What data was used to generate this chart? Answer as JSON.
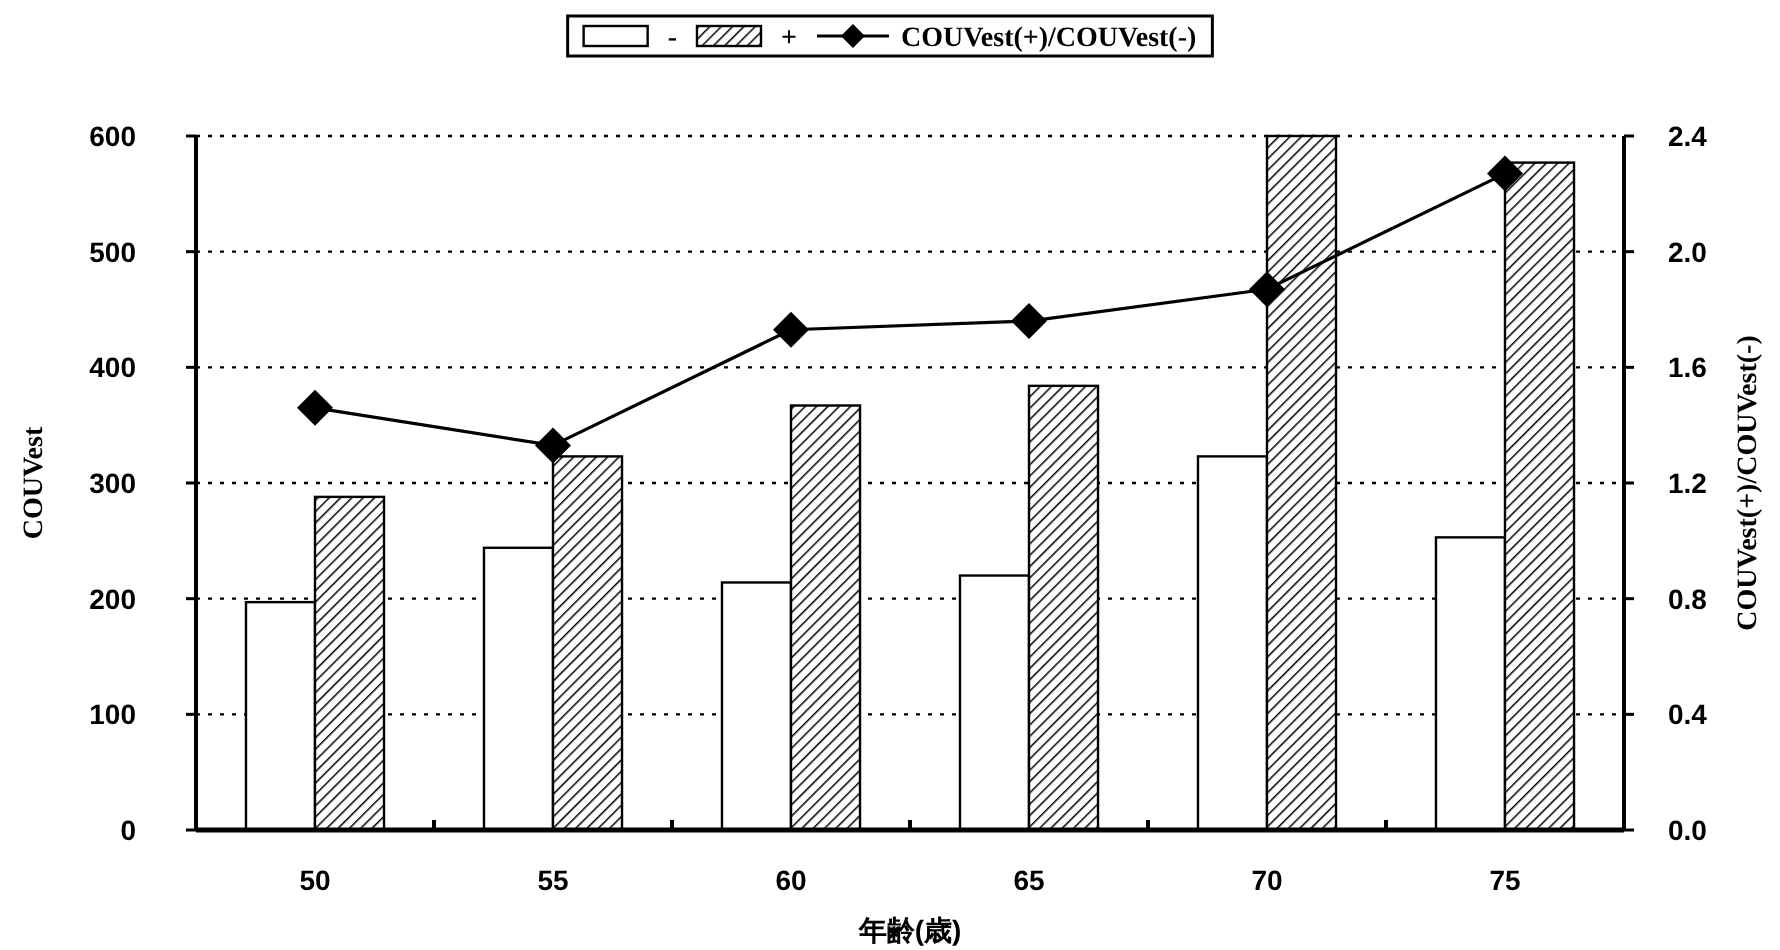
{
  "chart_data": {
    "type": "bar",
    "categories": [
      "50",
      "55",
      "60",
      "65",
      "70",
      "75"
    ],
    "series": [
      {
        "name": "-",
        "color": "#ffffff",
        "values": [
          197,
          244,
          214,
          220,
          323,
          253
        ]
      },
      {
        "name": "+",
        "color": "#000000",
        "values": [
          288,
          323,
          367,
          384,
          600,
          577
        ]
      },
      {
        "name": "COUVest(+)/COUVest(-)",
        "type": "line",
        "axis": "y2",
        "color": "#000000",
        "marker": "diamond",
        "line_style": "solid",
        "values": [
          1.46,
          1.33,
          1.73,
          1.76,
          1.87,
          2.27
        ]
      }
    ],
    "xlabel": "年齢(歳)",
    "ylabel": "COUVest",
    "y2label": "COUVest(+)/COUVest(-)",
    "ylim": [
      0,
      600
    ],
    "yticks": [
      0,
      100,
      200,
      300,
      400,
      500,
      600
    ],
    "y2lim": [
      0,
      2.4
    ],
    "y2ticks": [
      {
        "value": 0,
        "label": "0.0"
      },
      {
        "value": 0.4,
        "label": "0.4"
      },
      {
        "value": 0.8,
        "label": "0.8"
      },
      {
        "value": 1.2,
        "label": "1.2"
      },
      {
        "value": 1.6,
        "label": "1.6"
      },
      {
        "value": 2.0,
        "label": "2.0"
      },
      {
        "value": 2.4,
        "label": "2.4"
      }
    ],
    "grid": "y",
    "legend": "top"
  }
}
